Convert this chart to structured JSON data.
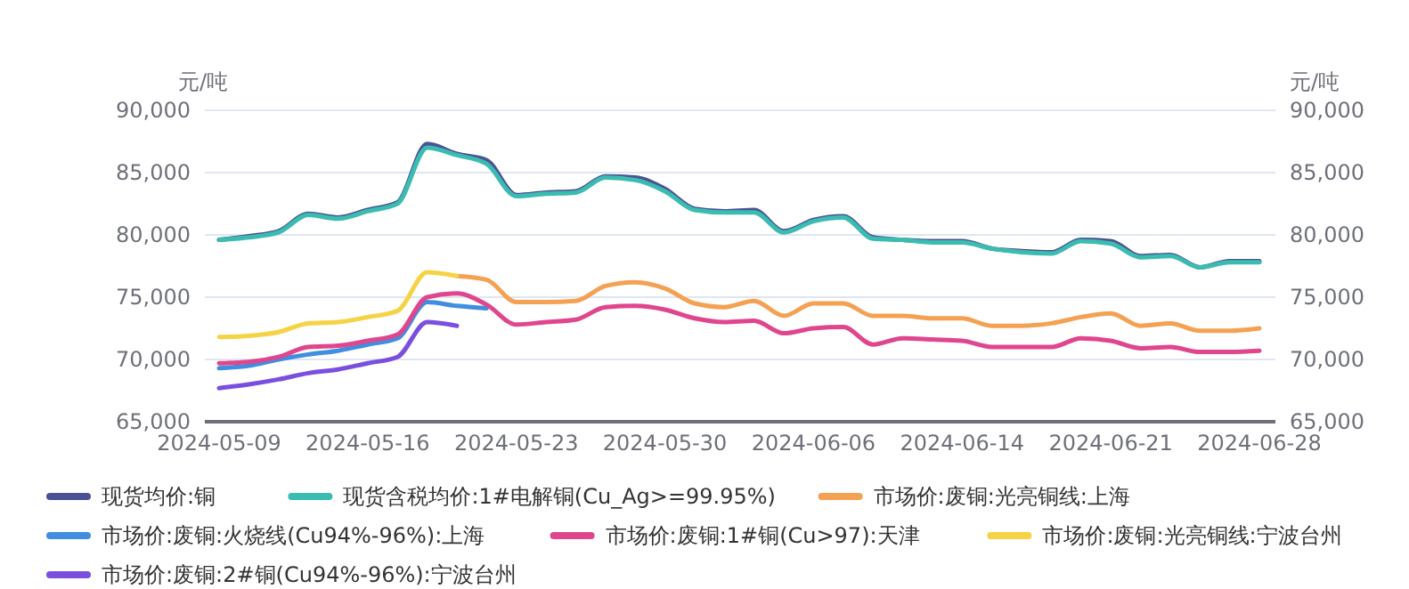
{
  "chart_data": {
    "type": "line",
    "ylabel": "元/吨",
    "y2label": "元/吨",
    "categories": [
      "2024-05-09",
      null,
      null,
      null,
      null,
      "2024-05-16",
      null,
      null,
      null,
      null,
      "2024-05-23",
      null,
      null,
      null,
      null,
      "2024-05-30",
      null,
      null,
      null,
      null,
      "2024-06-06",
      null,
      null,
      null,
      null,
      "2024-06-14",
      null,
      null,
      null,
      null,
      "2024-06-21",
      null,
      null,
      null,
      null,
      "2024-06-28"
    ],
    "ylim": [
      65000,
      90000
    ],
    "yticks": [
      {
        "value": 65000,
        "label": "65,000"
      },
      {
        "value": 70000,
        "label": "70,000"
      },
      {
        "value": 75000,
        "label": "75,000"
      },
      {
        "value": 80000,
        "label": "80,000"
      },
      {
        "value": 85000,
        "label": "85,000"
      },
      {
        "value": 90000,
        "label": "90,000"
      }
    ],
    "y2lim": [
      65000,
      90000
    ],
    "y2ticks": [
      {
        "value": 65000,
        "label": "65,000"
      },
      {
        "value": 70000,
        "label": "70,000"
      },
      {
        "value": 75000,
        "label": "75,000"
      },
      {
        "value": 80000,
        "label": "80,000"
      },
      {
        "value": 85000,
        "label": "85,000"
      },
      {
        "value": 90000,
        "label": "90,000"
      }
    ],
    "grid": "y",
    "legend": "bottom",
    "marker": "none",
    "line_style": "solid",
    "series": [
      {
        "name": "现货均价:铜",
        "color": "#4a5295",
        "values": [
          79600,
          79900,
          80300,
          81700,
          81400,
          82000,
          82600,
          87300,
          86500,
          86000,
          83200,
          83400,
          83500,
          84700,
          84600,
          83700,
          82100,
          81900,
          82000,
          80300,
          81200,
          81500,
          79800,
          79600,
          79500,
          79500,
          78900,
          78700,
          78600,
          79600,
          79500,
          78300,
          78400,
          77400,
          77900,
          77900
        ]
      },
      {
        "name": "现货含税均价:1#电解铜(Cu_Ag>=99.95%)",
        "color": "#3bbcb0",
        "values": [
          79600,
          79800,
          80200,
          81600,
          81300,
          81900,
          82500,
          87000,
          86400,
          85700,
          83100,
          83300,
          83400,
          84600,
          84400,
          83500,
          82000,
          81800,
          81800,
          80200,
          81100,
          81400,
          79700,
          79600,
          79400,
          79400,
          78900,
          78600,
          78500,
          79500,
          79300,
          78200,
          78300,
          77400,
          77800,
          77800
        ]
      },
      {
        "name": "市场价:废铜:光亮铜线:上海",
        "color": "#f5a153",
        "values": [
          null,
          null,
          null,
          null,
          null,
          null,
          null,
          null,
          76700,
          76400,
          74600,
          74600,
          74700,
          75900,
          76200,
          75700,
          74500,
          74200,
          74700,
          73500,
          74500,
          74500,
          73500,
          73500,
          73300,
          73300,
          72700,
          72700,
          72900,
          73400,
          73700,
          72700,
          72900,
          72300,
          72300,
          72500
        ]
      },
      {
        "name": "市场价:废铜:火烧线(Cu94%-96%):上海",
        "color": "#3f8ee0",
        "values": [
          69300,
          69500,
          70000,
          70400,
          70700,
          71200,
          71700,
          74600,
          74300,
          74100,
          null,
          null,
          null,
          null,
          null,
          null,
          null,
          null,
          null,
          null,
          null,
          null,
          null,
          null,
          null,
          null,
          null,
          null,
          null,
          null,
          null,
          null,
          null,
          null,
          null,
          null
        ]
      },
      {
        "name": "市场价:废铜:1#铜(Cu>97):天津",
        "color": "#e0468e",
        "values": [
          69700,
          69800,
          70200,
          71000,
          71100,
          71500,
          72000,
          75000,
          75300,
          74400,
          72800,
          73000,
          73200,
          74200,
          74300,
          74000,
          73300,
          73000,
          73100,
          72100,
          72500,
          72600,
          71200,
          71700,
          71600,
          71500,
          71000,
          71000,
          71000,
          71700,
          71500,
          70900,
          71000,
          70600,
          70600,
          70700
        ]
      },
      {
        "name": "市场价:废铜:光亮铜线:宁波台州",
        "color": "#f5d345",
        "values": [
          71800,
          71900,
          72200,
          72900,
          73000,
          73400,
          73900,
          77000,
          76700,
          null,
          null,
          null,
          null,
          null,
          null,
          null,
          null,
          null,
          null,
          null,
          null,
          null,
          null,
          null,
          null,
          null,
          null,
          null,
          null,
          null,
          null,
          null,
          null,
          null,
          null,
          null
        ]
      },
      {
        "name": "市场价:废铜:2#铜(Cu94%-96%):宁波台州",
        "color": "#7a4fe0",
        "values": [
          67700,
          68000,
          68400,
          68900,
          69200,
          69700,
          70200,
          73000,
          72700,
          null,
          null,
          null,
          null,
          null,
          null,
          null,
          null,
          null,
          null,
          null,
          null,
          null,
          null,
          null,
          null,
          null,
          null,
          null,
          null,
          null,
          null,
          null,
          null,
          null,
          null,
          null
        ]
      }
    ]
  }
}
